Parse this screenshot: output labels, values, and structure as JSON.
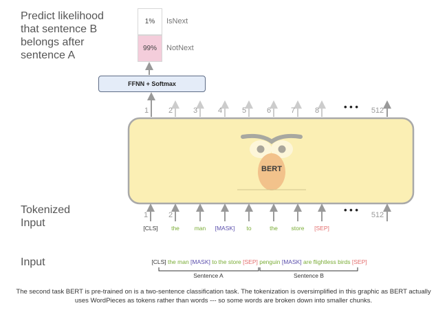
{
  "left_labels": {
    "predict": [
      "Predict likelihood",
      "that sentence B",
      "belongs after",
      "sentence A"
    ],
    "tokenized": [
      "Tokenized",
      "Input"
    ],
    "input": "Input"
  },
  "probs": [
    {
      "value": "1%",
      "label": "IsNext"
    },
    {
      "value": "99%",
      "label": "NotNext"
    }
  ],
  "ffnn_label": "FFNN + Softmax",
  "bert_label": "BERT",
  "top_positions": [
    "1",
    "2",
    "3",
    "4",
    "5",
    "6",
    "7",
    "8",
    "512"
  ],
  "bottom_positions": [
    "1",
    "2",
    "512"
  ],
  "dots": "• • •",
  "tokens": [
    {
      "text": "[CLS]",
      "kind": "cls"
    },
    {
      "text": "the",
      "kind": "word"
    },
    {
      "text": "man",
      "kind": "word"
    },
    {
      "text": "[MASK]",
      "kind": "mask"
    },
    {
      "text": "to",
      "kind": "word"
    },
    {
      "text": "the",
      "kind": "word"
    },
    {
      "text": "store",
      "kind": "word"
    },
    {
      "text": "[SEP]",
      "kind": "sep"
    }
  ],
  "sequence": [
    {
      "text": "[CLS] ",
      "kind": "cls"
    },
    {
      "text": "the man ",
      "kind": "word"
    },
    {
      "text": "[MASK] ",
      "kind": "mask"
    },
    {
      "text": "to the store ",
      "kind": "word"
    },
    {
      "text": "[SEP] ",
      "kind": "sep"
    },
    {
      "text": "penguin ",
      "kind": "word"
    },
    {
      "text": "[MASK] ",
      "kind": "mask"
    },
    {
      "text": "are flightless birds ",
      "kind": "word"
    },
    {
      "text": "[SEP]",
      "kind": "sep"
    }
  ],
  "segments": {
    "a": "Sentence A",
    "b": "Sentence B"
  },
  "caption": "The second task BERT is pre-trained on is a two-sentence classification task. The tokenization is oversimplified in this graphic as BERT actually uses WordPieces as tokens rather than words --- so some words are broken down into smaller chunks.",
  "colors": {
    "bert_body": "#fbefb4",
    "bert_border": "#a9a9a9",
    "notnext_fill": "#f4cddb",
    "ffnn_fill": "#e4ecf8",
    "face": "#f2c28b"
  }
}
